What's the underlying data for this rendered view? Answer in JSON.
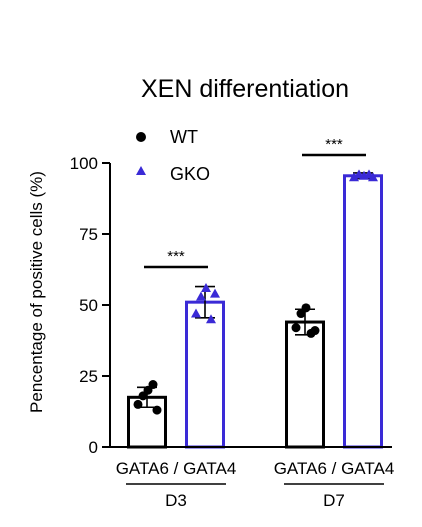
{
  "chart_data": {
    "type": "bar",
    "title": "XEN differentiation",
    "xlabel": "",
    "ylabel": "Pencentage of positive cells (%)",
    "ylim": [
      0,
      100
    ],
    "yticks": [
      0,
      25,
      50,
      75,
      100
    ],
    "grid": false,
    "legend_position": "top-left",
    "categories": [
      "GATA6 / GATA4",
      "GATA6 / GATA4"
    ],
    "groups": [
      "D3",
      "D7"
    ],
    "series": [
      {
        "name": "WT",
        "marker": "circle",
        "color": "#000000",
        "values": [
          17.5,
          44
        ],
        "error": [
          3.5,
          4.5
        ],
        "points": [
          [
            15,
            18,
            20,
            22,
            13
          ],
          [
            42,
            47,
            49,
            40,
            41
          ]
        ]
      },
      {
        "name": "GKO",
        "marker": "triangle",
        "color": "#3a2ad6",
        "values": [
          51,
          95.5
        ],
        "error": [
          5.5,
          1
        ],
        "points": [
          [
            47,
            53,
            56,
            45,
            54
          ],
          [
            95,
            96,
            95.5,
            96,
            95
          ]
        ]
      }
    ],
    "annotations": [
      "***",
      "***"
    ]
  }
}
